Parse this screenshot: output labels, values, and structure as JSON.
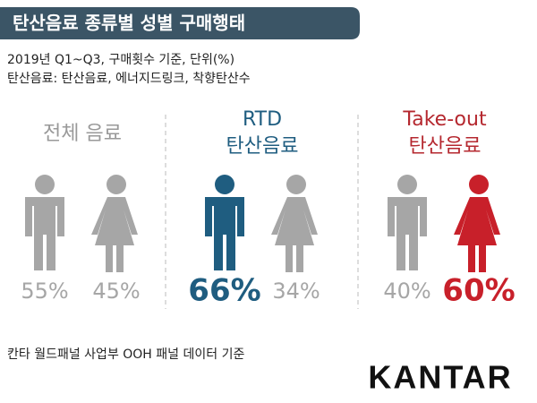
{
  "title": "탄산음료 종류별 성별 구매행태",
  "subtitle_lines": [
    "2019년 Q1~Q3, 구매횟수 기준, 단위(%)",
    "탄산음료: 탄산음료, 에너지드링크, 착향탄산수"
  ],
  "chart_data": [
    {
      "type": "pictogram",
      "title_lines": [
        "전체 음료"
      ],
      "title_color": "#999999",
      "values": [
        55,
        45
      ],
      "value_labels": [
        "55%",
        "45%"
      ],
      "colors": [
        "#a6a6a6",
        "#a6a6a6"
      ]
    },
    {
      "type": "pictogram",
      "title_lines": [
        "RTD",
        "탄산음료"
      ],
      "title_color": "#1f5d80",
      "values": [
        66,
        34
      ],
      "value_labels": [
        "66%",
        "34%"
      ],
      "colors": [
        "#1f5d80",
        "#a6a6a6"
      ]
    },
    {
      "type": "pictogram",
      "title_lines": [
        "Take-out",
        "탄산음료"
      ],
      "title_color": "#b5282f",
      "values": [
        40,
        60
      ],
      "value_labels": [
        "40%",
        "60%"
      ],
      "colors": [
        "#a6a6a6",
        "#c8202a"
      ]
    }
  ],
  "footer": "칸타 월드패널 사업부 OOH 패널 데이터 기준",
  "logo": "KANTAR"
}
